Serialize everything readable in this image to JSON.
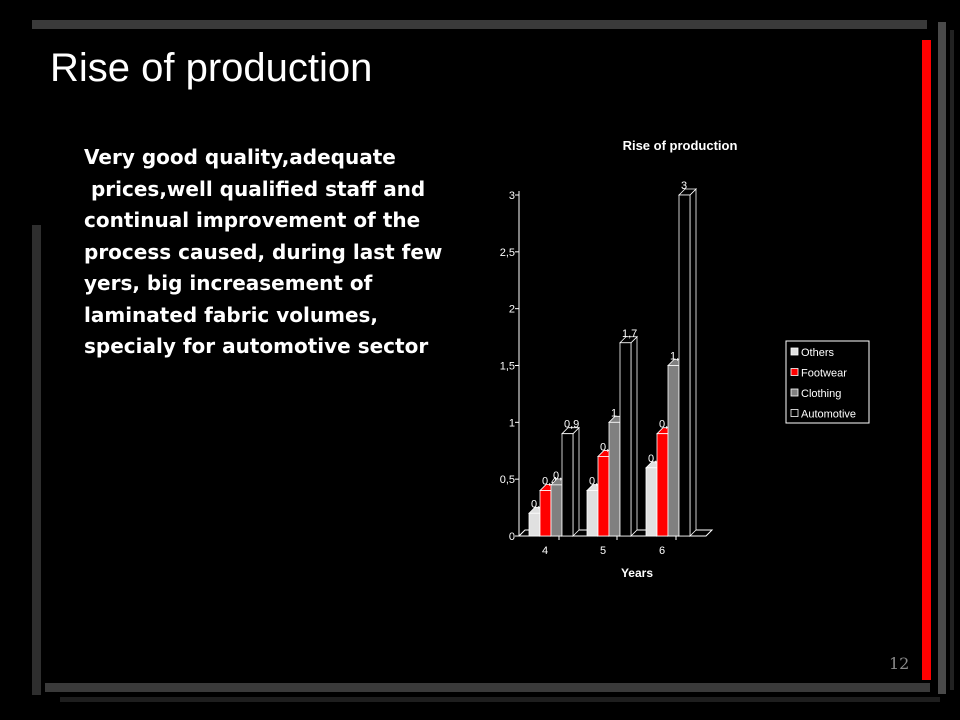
{
  "slide": {
    "title": "Rise of production",
    "body_lines": [
      "Very good quality,adequate",
      " prices,well qualified staff and continual improvement of the process caused, during last few yers, big increasement of laminated fabric volumes, specialy for automotive sector"
    ],
    "page_number": "12"
  },
  "colors": {
    "background": "#000000",
    "accent_red": "#ff0000",
    "frame_gray": "#333333"
  },
  "chart_data": {
    "type": "bar",
    "title": "Rise of production",
    "xlabel": "Years",
    "ylabel": "",
    "categories": [
      "4",
      "5",
      "6"
    ],
    "series": [
      {
        "name": "Others",
        "values": [
          0.2,
          0.4,
          0.6
        ],
        "labels": [
          "0,2",
          "0,4",
          "0,6"
        ],
        "color": "#e0e0e0"
      },
      {
        "name": "Footwear",
        "values": [
          0.4,
          0.7,
          0.9
        ],
        "labels": [
          "0,4",
          "0,7",
          "0,9"
        ],
        "color": "#ff0000"
      },
      {
        "name": "Clothing",
        "values": [
          0.45,
          1,
          1.5
        ],
        "labels": [
          "0,45",
          "1",
          "1,5"
        ],
        "color": "#808080"
      },
      {
        "name": "Automotive",
        "values": [
          0.9,
          1.7,
          3
        ],
        "labels": [
          "0,9",
          "1,7",
          "3"
        ],
        "color": "#000000"
      }
    ],
    "ylim": [
      0,
      3
    ],
    "yticks": [
      "0",
      "0,5",
      "1",
      "1,5",
      "2",
      "2,5",
      "3"
    ],
    "legend_position": "right",
    "grid": false
  }
}
